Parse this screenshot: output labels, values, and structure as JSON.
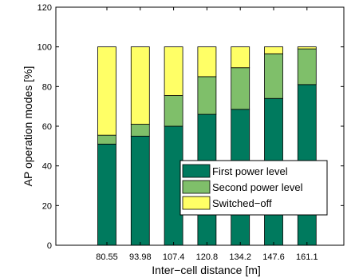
{
  "chart_data": {
    "type": "bar",
    "stacked": true,
    "categories": [
      "80.55",
      "93.98",
      "107.4",
      "120.8",
      "134.2",
      "147.6",
      "161.1"
    ],
    "series": [
      {
        "name": "First power level",
        "color": "#007a5e",
        "values": [
          51,
          55,
          60,
          66,
          68.5,
          74,
          81
        ]
      },
      {
        "name": "Second power level",
        "color": "#7fbf6a",
        "values": [
          4.5,
          6,
          15.5,
          19,
          21,
          22.5,
          18
        ]
      },
      {
        "name": "Switched−off",
        "color": "#ffff66",
        "values": [
          44.5,
          39,
          24.5,
          15,
          10.5,
          3.5,
          1
        ]
      }
    ],
    "xlabel": "Inter−cell distance [m]",
    "ylabel": "AP operation modes [%]",
    "ylim": [
      0,
      120
    ],
    "yticks": [
      "0",
      "20",
      "40",
      "60",
      "80",
      "100",
      "120"
    ],
    "grid": false,
    "legend_position": "bottom-right"
  }
}
